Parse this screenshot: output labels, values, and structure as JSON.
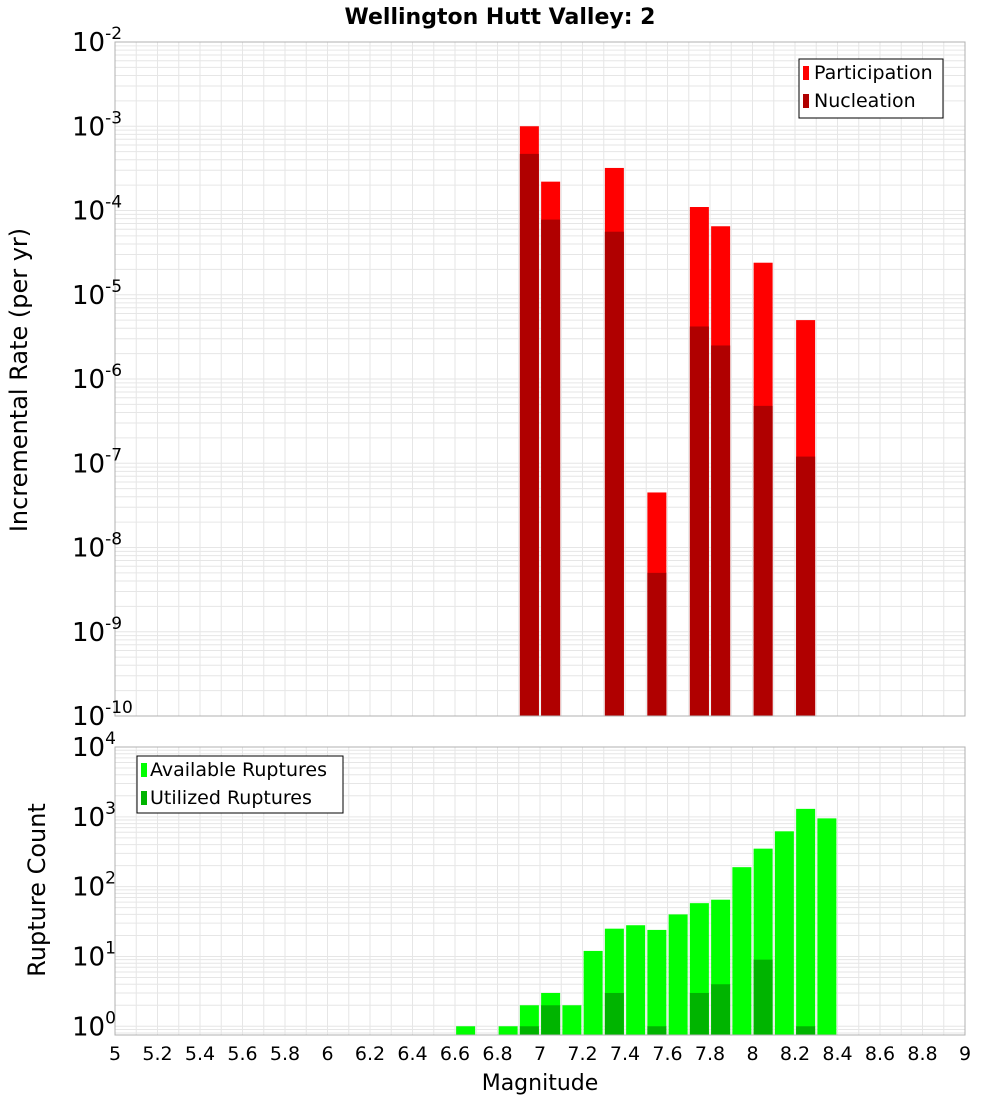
{
  "colors": {
    "participation": "#ff0000",
    "nucleation": "#b00000",
    "available": "#00ff00",
    "utilized": "#00b400",
    "grid": "#e6e6e6",
    "frame": "#b0b0b0"
  },
  "chart_data": [
    {
      "type": "bar",
      "title": "Wellington Hutt Valley: 2",
      "ylabel": "Incremental Rate (per yr)",
      "xlabel": "",
      "yscale": "log",
      "ylim": [
        1e-10,
        0.01
      ],
      "xlim": [
        5,
        9
      ],
      "grid": true,
      "legend_position": "top-right",
      "y_tick_exponents": [
        "-10",
        "-9",
        "-8",
        "-7",
        "-6",
        "-5",
        "-4",
        "-3",
        "-2"
      ],
      "y_tick_base": "10",
      "series": [
        {
          "name": "Participation",
          "x": [
            6.95,
            7.05,
            7.35,
            7.55,
            7.75,
            7.85,
            8.05,
            8.25
          ],
          "values": [
            0.001,
            0.00022,
            0.00032,
            4.5e-08,
            0.00011,
            6.5e-05,
            2.4e-05,
            5e-06
          ]
        },
        {
          "name": "Nucleation",
          "x": [
            6.95,
            7.05,
            7.35,
            7.55,
            7.75,
            7.85,
            8.05,
            8.25
          ],
          "values": [
            0.00047,
            7.8e-05,
            5.6e-05,
            5e-09,
            4.2e-06,
            2.5e-06,
            4.8e-07,
            1.2e-07
          ]
        }
      ]
    },
    {
      "type": "bar",
      "title": "",
      "ylabel": "Rupture Count",
      "xlabel": "Magnitude",
      "yscale": "log",
      "ylim": [
        0.75,
        10000
      ],
      "xlim": [
        5,
        9
      ],
      "grid": true,
      "legend_position": "top-left",
      "y_tick_exponents": [
        "0",
        "1",
        "2",
        "3",
        "4"
      ],
      "y_tick_base": "10",
      "x_ticks": [
        "5",
        "5.2",
        "5.4",
        "5.6",
        "5.8",
        "6",
        "6.2",
        "6.4",
        "6.6",
        "6.8",
        "7",
        "7.2",
        "7.4",
        "7.6",
        "7.8",
        "8",
        "8.2",
        "8.4",
        "8.6",
        "8.8",
        "9"
      ],
      "series": [
        {
          "name": "Available Ruptures",
          "x": [
            6.65,
            6.85,
            6.95,
            7.05,
            7.15,
            7.25,
            7.35,
            7.45,
            7.55,
            7.65,
            7.75,
            7.85,
            7.95,
            8.05,
            8.15,
            8.25,
            8.35
          ],
          "values": [
            1,
            1,
            2,
            3,
            2,
            12,
            25,
            28,
            24,
            40,
            58,
            65,
            190,
            350,
            620,
            1300,
            950
          ]
        },
        {
          "name": "Utilized Ruptures",
          "x": [
            6.95,
            7.05,
            7.35,
            7.55,
            7.75,
            7.85,
            8.05,
            8.25
          ],
          "values": [
            1,
            2,
            3,
            1,
            3,
            4,
            9,
            1
          ]
        }
      ]
    }
  ]
}
